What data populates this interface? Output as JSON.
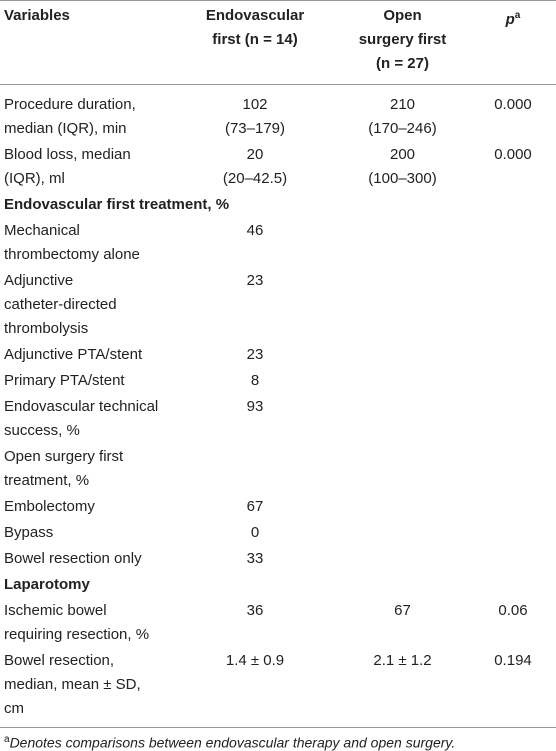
{
  "header": {
    "variables": "Variables",
    "endovascular": [
      "Endovascular",
      "first (n = 14)"
    ],
    "open": [
      "Open",
      "surgery first",
      "(n = 27)"
    ],
    "p": "p",
    "p_sup": "a"
  },
  "rows": [
    {
      "variable": [
        "Procedure duration,",
        "median (IQR), min"
      ],
      "endovascular": [
        "102",
        "(73–179)"
      ],
      "open": [
        "210",
        "(170–246)"
      ],
      "p": [
        "0.000"
      ]
    },
    {
      "variable": [
        "Blood loss, median",
        "(IQR), ml"
      ],
      "endovascular": [
        "20",
        "(20–42.5)"
      ],
      "open": [
        "200",
        "(100–300)"
      ],
      "p": [
        "0.000"
      ]
    },
    {
      "section": "Endovascular first treatment, %"
    },
    {
      "variable": [
        "Mechanical",
        "thrombectomy alone"
      ],
      "endovascular": [
        "46"
      ]
    },
    {
      "variable": [
        "Adjunctive",
        "catheter-directed",
        "thrombolysis"
      ],
      "endovascular": [
        "23"
      ]
    },
    {
      "variable": [
        "Adjunctive PTA/stent"
      ],
      "endovascular": [
        "23"
      ]
    },
    {
      "variable": [
        "Primary PTA/stent"
      ],
      "endovascular": [
        "8"
      ]
    },
    {
      "variable": [
        "Endovascular technical",
        "success, %"
      ],
      "endovascular": [
        "93"
      ]
    },
    {
      "variable": [
        "Open surgery first",
        "treatment, %"
      ]
    },
    {
      "variable": [
        "Embolectomy"
      ],
      "endovascular": [
        "67"
      ]
    },
    {
      "variable": [
        "Bypass"
      ],
      "endovascular": [
        "0"
      ]
    },
    {
      "variable": [
        "Bowel resection only"
      ],
      "endovascular": [
        "33"
      ]
    },
    {
      "section": "Laparotomy"
    },
    {
      "variable": [
        "Ischemic bowel",
        "requiring resection, %"
      ],
      "endovascular": [
        "36"
      ],
      "open": [
        "67"
      ],
      "p": [
        "0.06"
      ]
    },
    {
      "variable": [
        "Bowel resection,",
        "median, mean ± SD,",
        "cm"
      ],
      "endovascular": [
        "1.4 ± 0.9"
      ],
      "open": [
        "2.1 ± 1.2"
      ],
      "p": [
        "0.194"
      ]
    }
  ],
  "footnote": {
    "sup": "a",
    "text": "Denotes comparisons between endovascular therapy and open surgery."
  }
}
